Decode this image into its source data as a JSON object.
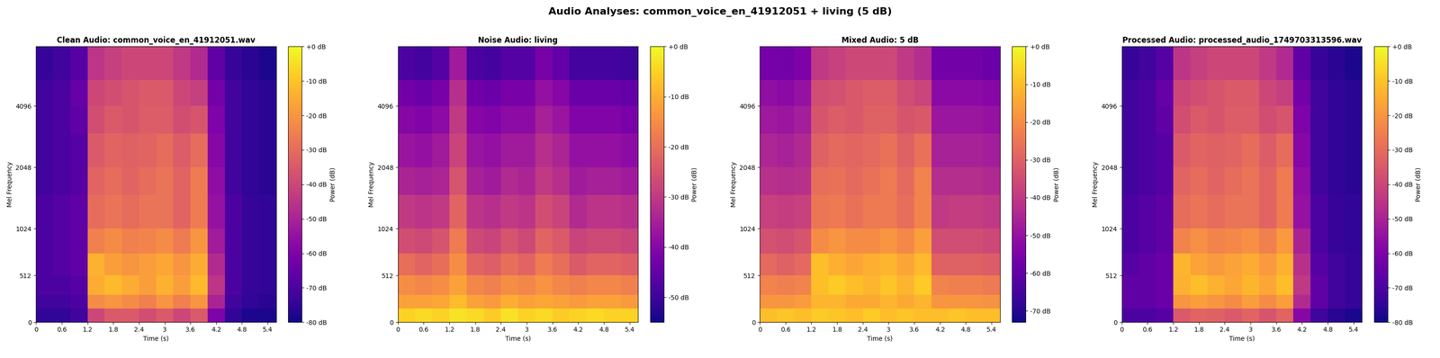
{
  "title": "Audio Analyses: common_voice_en_41912051 + living (5 dB)",
  "chart_data": [
    {
      "type": "heatmap",
      "title": "Clean Audio: common_voice_en_41912051.wav",
      "x_label": "Time (s)",
      "y_label": "Mel Frequency",
      "xlim": [
        0,
        5.6
      ],
      "xticks": [
        0,
        0.6,
        1.2,
        1.8,
        2.4,
        3,
        3.6,
        4.2,
        4.8,
        5.4
      ],
      "ylim": [
        0,
        8000
      ],
      "yticks": [
        0,
        512,
        1024,
        2048,
        4096
      ],
      "x_edges": [
        0,
        0.4,
        0.8,
        1.2,
        1.6,
        2.0,
        2.4,
        2.8,
        3.2,
        3.6,
        4.0,
        4.4,
        4.8,
        5.2,
        5.6
      ],
      "y_edges": [
        0,
        150,
        300,
        512,
        750,
        1024,
        1500,
        2048,
        3000,
        4096,
        5500,
        8000
      ],
      "cells": [
        [
          -75,
          -75,
          -72,
          -40,
          -35,
          -35,
          -38,
          -35,
          -40,
          -35,
          -60,
          -75,
          -78,
          -78
        ],
        [
          -72,
          -72,
          -70,
          -22,
          -20,
          -22,
          -25,
          -20,
          -25,
          -20,
          -50,
          -72,
          -75,
          -76
        ],
        [
          -70,
          -70,
          -68,
          -15,
          -12,
          -15,
          -18,
          -14,
          -18,
          -12,
          -45,
          -70,
          -74,
          -75
        ],
        [
          -70,
          -68,
          -66,
          -14,
          -18,
          -20,
          -18,
          -16,
          -20,
          -15,
          -48,
          -70,
          -74,
          -75
        ],
        [
          -70,
          -68,
          -66,
          -25,
          -22,
          -25,
          -24,
          -22,
          -26,
          -20,
          -52,
          -70,
          -74,
          -75
        ],
        [
          -70,
          -68,
          -66,
          -30,
          -28,
          -30,
          -28,
          -28,
          -32,
          -26,
          -55,
          -70,
          -74,
          -75
        ],
        [
          -72,
          -70,
          -68,
          -32,
          -30,
          -32,
          -30,
          -28,
          -32,
          -26,
          -56,
          -72,
          -75,
          -76
        ],
        [
          -72,
          -70,
          -68,
          -35,
          -32,
          -33,
          -32,
          -30,
          -34,
          -30,
          -58,
          -72,
          -75,
          -76
        ],
        [
          -72,
          -70,
          -66,
          -38,
          -35,
          -36,
          -34,
          -34,
          -38,
          -36,
          -60,
          -72,
          -75,
          -76
        ],
        [
          -72,
          -70,
          -65,
          -40,
          -38,
          -36,
          -35,
          -35,
          -40,
          -42,
          -62,
          -72,
          -75,
          -76
        ],
        [
          -74,
          -72,
          -68,
          -45,
          -42,
          -40,
          -40,
          -40,
          -44,
          -48,
          -66,
          -74,
          -76,
          -78
        ]
      ],
      "colorbar": {
        "label": "Power (dB)",
        "range": [
          -80,
          0
        ],
        "ticks": [
          {
            "value": 0,
            "label": "+0 dB"
          },
          {
            "value": -10,
            "label": "-10 dB"
          },
          {
            "value": -20,
            "label": "-20 dB"
          },
          {
            "value": -30,
            "label": "-30 dB"
          },
          {
            "value": -40,
            "label": "-40 dB"
          },
          {
            "value": -50,
            "label": "-50 dB"
          },
          {
            "value": -60,
            "label": "-60 dB"
          },
          {
            "value": -70,
            "label": "-70 dB"
          },
          {
            "value": -80,
            "label": "-80 dB"
          }
        ]
      }
    },
    {
      "type": "heatmap",
      "title": "Noise Audio: living",
      "x_label": "Time (s)",
      "y_label": "Mel Frequency",
      "xlim": [
        0,
        5.6
      ],
      "xticks": [
        0,
        0.6,
        1.2,
        1.8,
        2.4,
        3,
        3.6,
        4.2,
        4.8,
        5.4
      ],
      "ylim": [
        0,
        8000
      ],
      "yticks": [
        0,
        512,
        1024,
        2048,
        4096
      ],
      "x_edges": [
        0,
        0.4,
        0.8,
        1.2,
        1.6,
        2.0,
        2.4,
        2.8,
        3.2,
        3.6,
        4.0,
        4.4,
        4.8,
        5.2,
        5.6
      ],
      "y_edges": [
        0,
        150,
        300,
        512,
        750,
        1024,
        1500,
        2048,
        3000,
        4096,
        5500,
        8000
      ],
      "cells": [
        [
          -5,
          -4,
          -5,
          -3,
          -4,
          -6,
          -3,
          -5,
          -4,
          -6,
          -5,
          -4,
          -5,
          -5
        ],
        [
          -12,
          -12,
          -11,
          -8,
          -12,
          -13,
          -10,
          -12,
          -11,
          -12,
          -13,
          -12,
          -12,
          -13
        ],
        [
          -15,
          -16,
          -15,
          -12,
          -16,
          -17,
          -15,
          -16,
          -14,
          -16,
          -17,
          -16,
          -16,
          -17
        ],
        [
          -20,
          -22,
          -20,
          -15,
          -22,
          -23,
          -20,
          -22,
          -18,
          -20,
          -24,
          -22,
          -22,
          -23
        ],
        [
          -26,
          -27,
          -25,
          -18,
          -27,
          -28,
          -25,
          -27,
          -22,
          -24,
          -28,
          -27,
          -27,
          -28
        ],
        [
          -30,
          -31,
          -30,
          -22,
          -31,
          -32,
          -30,
          -31,
          -26,
          -28,
          -33,
          -31,
          -31,
          -32
        ],
        [
          -34,
          -35,
          -34,
          -25,
          -35,
          -36,
          -33,
          -34,
          -30,
          -32,
          -36,
          -35,
          -35,
          -36
        ],
        [
          -37,
          -38,
          -36,
          -28,
          -37,
          -38,
          -36,
          -36,
          -32,
          -34,
          -38,
          -38,
          -38,
          -39
        ],
        [
          -40,
          -41,
          -39,
          -30,
          -40,
          -41,
          -39,
          -39,
          -35,
          -37,
          -41,
          -41,
          -41,
          -42
        ],
        [
          -43,
          -44,
          -42,
          -32,
          -43,
          -44,
          -42,
          -42,
          -38,
          -40,
          -44,
          -44,
          -44,
          -45
        ],
        [
          -48,
          -49,
          -47,
          -36,
          -48,
          -49,
          -47,
          -47,
          -42,
          -45,
          -49,
          -49,
          -49,
          -50
        ]
      ],
      "colorbar": {
        "label": "Power (dB)",
        "range": [
          -55,
          0
        ],
        "ticks": [
          {
            "value": 0,
            "label": "+0 dB"
          },
          {
            "value": -10,
            "label": "-10 dB"
          },
          {
            "value": -20,
            "label": "-20 dB"
          },
          {
            "value": -30,
            "label": "-30 dB"
          },
          {
            "value": -40,
            "label": "-40 dB"
          },
          {
            "value": -50,
            "label": "-50 dB"
          }
        ]
      }
    },
    {
      "type": "heatmap",
      "title": "Mixed Audio: 5 dB",
      "x_label": "Time (s)",
      "y_label": "Mel Frequency",
      "xlim": [
        0,
        5.6
      ],
      "xticks": [
        0,
        0.6,
        1.2,
        1.8,
        2.4,
        3,
        3.6,
        4.2,
        4.8,
        5.4
      ],
      "ylim": [
        0,
        8000
      ],
      "yticks": [
        0,
        512,
        1024,
        2048,
        4096
      ],
      "x_edges": [
        0,
        0.4,
        0.8,
        1.2,
        1.6,
        2.0,
        2.4,
        2.8,
        3.2,
        3.6,
        4.0,
        4.4,
        4.8,
        5.2,
        5.6
      ],
      "y_edges": [
        0,
        150,
        300,
        512,
        750,
        1024,
        1500,
        2048,
        3000,
        4096,
        5500,
        8000
      ],
      "cells": [
        [
          -10,
          -9,
          -10,
          -8,
          -9,
          -10,
          -8,
          -10,
          -9,
          -10,
          -10,
          -9,
          -10,
          -10
        ],
        [
          -18,
          -18,
          -17,
          -12,
          -12,
          -14,
          -14,
          -12,
          -14,
          -12,
          -18,
          -18,
          -18,
          -19
        ],
        [
          -22,
          -23,
          -22,
          -10,
          -8,
          -10,
          -12,
          -9,
          -12,
          -8,
          -22,
          -23,
          -23,
          -24
        ],
        [
          -28,
          -30,
          -28,
          -10,
          -13,
          -15,
          -13,
          -12,
          -15,
          -11,
          -30,
          -30,
          -30,
          -31
        ],
        [
          -34,
          -35,
          -33,
          -20,
          -18,
          -20,
          -20,
          -18,
          -21,
          -16,
          -35,
          -35,
          -35,
          -36
        ],
        [
          -38,
          -39,
          -38,
          -25,
          -24,
          -26,
          -24,
          -24,
          -27,
          -22,
          -40,
          -39,
          -39,
          -40
        ],
        [
          -42,
          -43,
          -42,
          -27,
          -26,
          -28,
          -26,
          -24,
          -28,
          -22,
          -43,
          -43,
          -43,
          -44
        ],
        [
          -45,
          -46,
          -44,
          -30,
          -28,
          -29,
          -28,
          -26,
          -30,
          -26,
          -46,
          -46,
          -46,
          -47
        ],
        [
          -48,
          -49,
          -47,
          -33,
          -31,
          -32,
          -30,
          -30,
          -33,
          -32,
          -49,
          -49,
          -49,
          -50
        ],
        [
          -51,
          -52,
          -50,
          -35,
          -34,
          -32,
          -31,
          -31,
          -35,
          -37,
          -52,
          -52,
          -52,
          -53
        ],
        [
          -56,
          -57,
          -55,
          -40,
          -38,
          -36,
          -36,
          -36,
          -40,
          -43,
          -57,
          -57,
          -57,
          -58
        ]
      ],
      "colorbar": {
        "label": "Power (dB)",
        "range": [
          -73,
          0
        ],
        "ticks": [
          {
            "value": 0,
            "label": "+0 dB"
          },
          {
            "value": -10,
            "label": "-10 dB"
          },
          {
            "value": -20,
            "label": "-20 dB"
          },
          {
            "value": -30,
            "label": "-30 dB"
          },
          {
            "value": -40,
            "label": "-40 dB"
          },
          {
            "value": -50,
            "label": "-50 dB"
          },
          {
            "value": -60,
            "label": "-60 dB"
          },
          {
            "value": -70,
            "label": "-70 dB"
          }
        ]
      }
    },
    {
      "type": "heatmap",
      "title": "Processed Audio: processed_audio_1749703313596.wav",
      "x_label": "Time (s)",
      "y_label": "Mel Frequency",
      "xlim": [
        0,
        5.6
      ],
      "xticks": [
        0,
        0.6,
        1.2,
        1.8,
        2.4,
        3,
        3.6,
        4.2,
        4.8,
        5.4
      ],
      "ylim": [
        0,
        8000
      ],
      "yticks": [
        0,
        512,
        1024,
        2048,
        4096
      ],
      "x_edges": [
        0,
        0.4,
        0.8,
        1.2,
        1.6,
        2.0,
        2.4,
        2.8,
        3.2,
        3.6,
        4.0,
        4.4,
        4.8,
        5.2,
        5.6
      ],
      "y_edges": [
        0,
        150,
        300,
        512,
        750,
        1024,
        1500,
        2048,
        3000,
        4096,
        5500,
        8000
      ],
      "cells": [
        [
          -70,
          -70,
          -68,
          -35,
          -32,
          -33,
          -35,
          -32,
          -36,
          -32,
          -58,
          -72,
          -76,
          -78
        ],
        [
          -66,
          -66,
          -64,
          -20,
          -18,
          -20,
          -22,
          -18,
          -22,
          -18,
          -48,
          -66,
          -72,
          -74
        ],
        [
          -66,
          -66,
          -64,
          -14,
          -11,
          -14,
          -16,
          -13,
          -16,
          -11,
          -44,
          -66,
          -72,
          -74
        ],
        [
          -68,
          -66,
          -64,
          -13,
          -17,
          -19,
          -17,
          -15,
          -19,
          -14,
          -46,
          -68,
          -72,
          -74
        ],
        [
          -70,
          -68,
          -66,
          -24,
          -21,
          -24,
          -23,
          -21,
          -25,
          -19,
          -50,
          -70,
          -74,
          -75
        ],
        [
          -70,
          -68,
          -66,
          -30,
          -28,
          -30,
          -28,
          -28,
          -32,
          -26,
          -55,
          -70,
          -74,
          -75
        ],
        [
          -72,
          -70,
          -68,
          -32,
          -30,
          -32,
          -30,
          -28,
          -32,
          -26,
          -56,
          -72,
          -75,
          -76
        ],
        [
          -72,
          -70,
          -68,
          -35,
          -32,
          -33,
          -32,
          -30,
          -34,
          -30,
          -58,
          -72,
          -75,
          -76
        ],
        [
          -72,
          -70,
          -66,
          -38,
          -35,
          -36,
          -34,
          -34,
          -38,
          -36,
          -60,
          -72,
          -75,
          -76
        ],
        [
          -72,
          -70,
          -65,
          -40,
          -38,
          -36,
          -35,
          -35,
          -40,
          -42,
          -62,
          -72,
          -75,
          -76
        ],
        [
          -74,
          -72,
          -68,
          -45,
          -42,
          -40,
          -40,
          -40,
          -44,
          -48,
          -66,
          -74,
          -76,
          -78
        ]
      ],
      "colorbar": {
        "label": "Power (dB)",
        "range": [
          -80,
          0
        ],
        "ticks": [
          {
            "value": 0,
            "label": "+0 dB"
          },
          {
            "value": -10,
            "label": "-10 dB"
          },
          {
            "value": -20,
            "label": "-20 dB"
          },
          {
            "value": -30,
            "label": "-30 dB"
          },
          {
            "value": -40,
            "label": "-40 dB"
          },
          {
            "value": -50,
            "label": "-50 dB"
          },
          {
            "value": -60,
            "label": "-60 dB"
          },
          {
            "value": -70,
            "label": "-70 dB"
          },
          {
            "value": -80,
            "label": "-80 dB"
          }
        ]
      }
    }
  ]
}
